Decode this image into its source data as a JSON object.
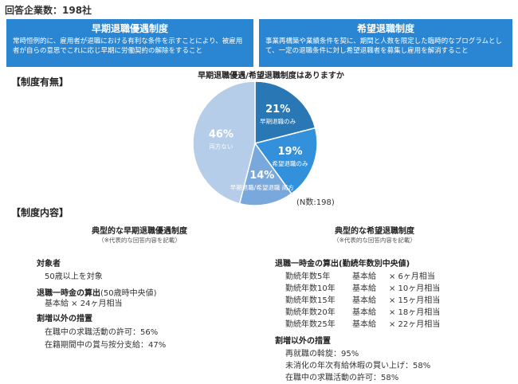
{
  "header": {
    "title": "回答企業数：198社"
  },
  "boxes": {
    "left": {
      "title": "早期退職優遇制度",
      "desc": "常時恒例的に、雇用者が退職における有利な条件を示すことにより、被雇用者が自らの意思でこれに応じ早期に労働契約の解除をすること",
      "color": "#2a86d3"
    },
    "right": {
      "title": "希望退職制度",
      "desc": "事業再構築や業績条件を契に、期間と人数を限定した臨時的なプログラムとして、一定の退職条件に対し希望退職者を募集し雇用を解消すること",
      "color": "#2a86d3"
    }
  },
  "sections": {
    "has_system": "【制度有無】",
    "content": "【制度内容】"
  },
  "chart_data": {
    "type": "pie",
    "title": "早期退職優遇/希望退職制度はありますか",
    "note": "(N数:198)",
    "slices": [
      {
        "label": "早期退職のみ",
        "value": 21,
        "display": "21%",
        "color": "#2a77b6"
      },
      {
        "label": "希望退職のみ",
        "value": 19,
        "display": "19%",
        "color": "#3391dc"
      },
      {
        "label": "早期退職/希望退職 両方",
        "value": 14,
        "display": "14%",
        "color": "#79a9dc"
      },
      {
        "label": "両方ない",
        "value": 46,
        "display": "46%",
        "color": "#b5cde9"
      }
    ]
  },
  "left_col": {
    "heading": "典型的な早期退職優遇制度",
    "note": "（※代表的な回答内容を記載）",
    "target_heading": "対象者",
    "target_text": "50歳以上を対象",
    "lump_heading": "退職一時金の算出",
    "lump_heading_sub": "(50歳時中央値)",
    "lump_text": "基本給 × 24ヶ月相当",
    "other_heading": "割増以外の措置",
    "other_items": [
      "在職中の求職活動の許可：56%",
      "在籍期間中の賞与按分支給：47%"
    ]
  },
  "right_col": {
    "heading": "典型的な希望退職制度",
    "note": "（※代表的な回答内容を記載）",
    "lump_heading": "退職一時金の算出(勤続年数別中央値)",
    "rows": [
      {
        "years": "勤続年数5年",
        "base": "基本給",
        "mult": "× 6ヶ月相当"
      },
      {
        "years": "勤続年数10年",
        "base": "基本給",
        "mult": "× 10ヶ月相当"
      },
      {
        "years": "勤続年数15年",
        "base": "基本給",
        "mult": "× 15ヶ月相当"
      },
      {
        "years": "勤続年数20年",
        "base": "基本給",
        "mult": "× 18ヶ月相当"
      },
      {
        "years": "勤続年数25年",
        "base": "基本給",
        "mult": "× 22ヶ月相当"
      }
    ],
    "other_heading": "割増以外の措置",
    "other_items": [
      "再就職の斡旋：95%",
      "未消化の年次有給休暇の買い上げ：58%",
      "在職中の求職活動の許可：58%"
    ]
  }
}
